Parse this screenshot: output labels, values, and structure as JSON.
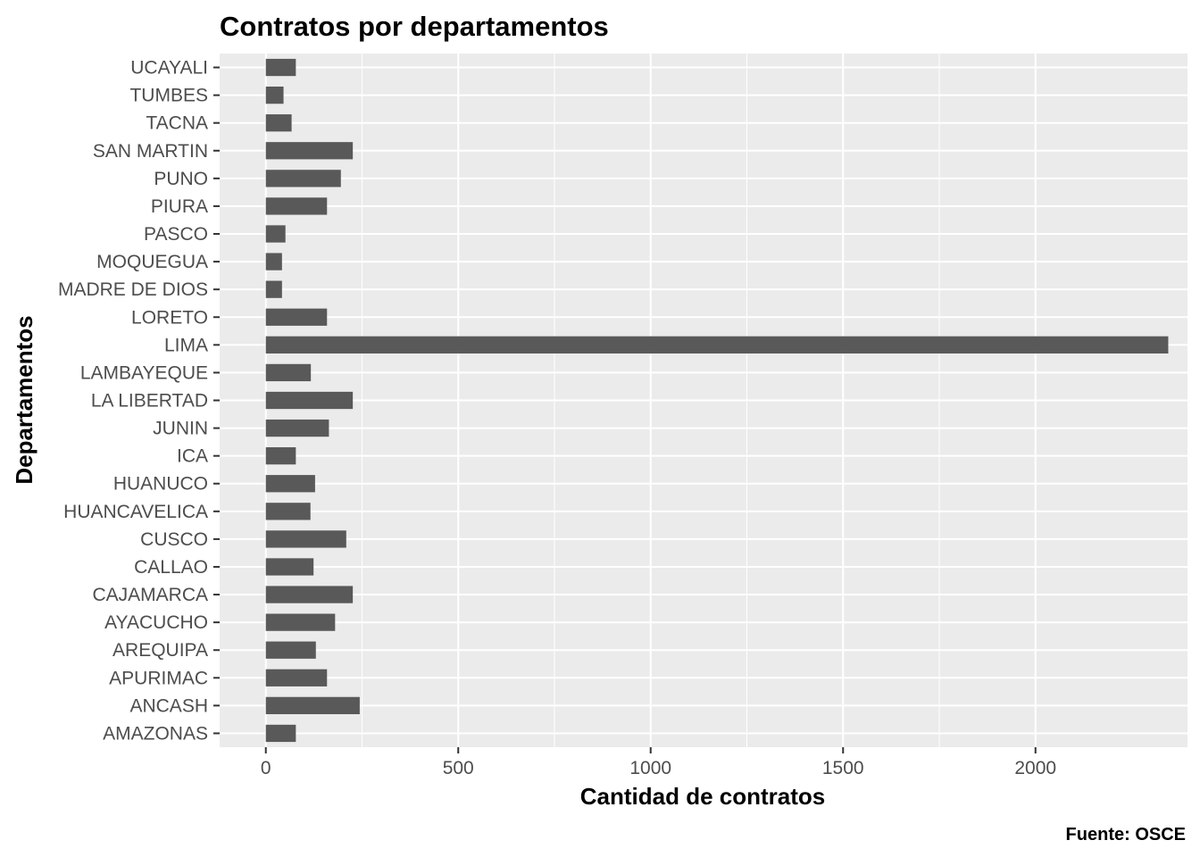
{
  "chart_data": {
    "type": "bar",
    "orientation": "horizontal",
    "title": "Contratos por departamentos",
    "xlabel": "Cantidad de contratos",
    "ylabel": "Departamentos",
    "caption": "Fuente: OSCE",
    "xlim": [
      -120,
      2395
    ],
    "xticks": [
      0,
      500,
      1000,
      1500,
      2000
    ],
    "grid": true,
    "bar_color": "#595959",
    "panel_color": "#ebebeb",
    "categories": [
      "AMAZONAS",
      "ANCASH",
      "APURIMAC",
      "AREQUIPA",
      "AYACUCHO",
      "CAJAMARCA",
      "CALLAO",
      "CUSCO",
      "HUANCAVELICA",
      "HUANUCO",
      "ICA",
      "JUNIN",
      "LA LIBERTAD",
      "LAMBAYEQUE",
      "LIMA",
      "LORETO",
      "MADRE DE DIOS",
      "MOQUEGUA",
      "PASCO",
      "PIURA",
      "PUNO",
      "SAN MARTIN",
      "TACNA",
      "TUMBES",
      "UCAYALI"
    ],
    "values": [
      78,
      244,
      159,
      130,
      180,
      226,
      124,
      209,
      116,
      128,
      78,
      164,
      226,
      117,
      2345,
      159,
      42,
      42,
      51,
      159,
      195,
      226,
      67,
      46,
      78
    ]
  }
}
